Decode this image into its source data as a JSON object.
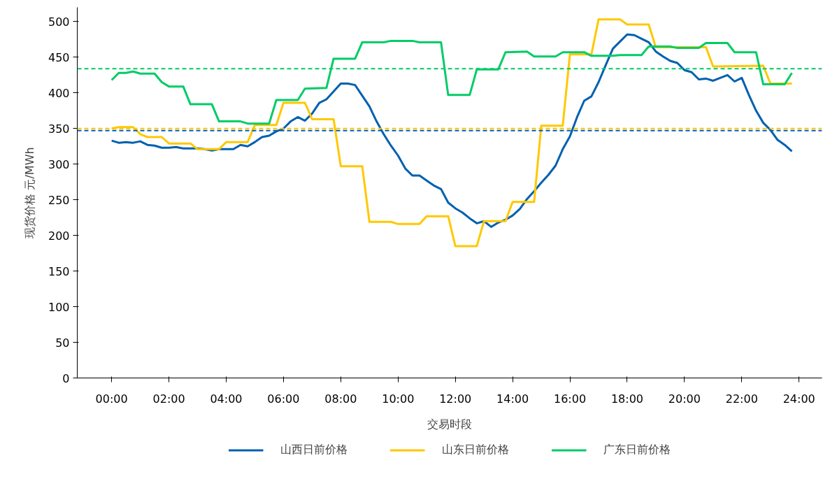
{
  "chart_data": {
    "type": "line",
    "xlabel": "交易时段",
    "ylabel": "现货价格 元/MWh",
    "xlim": [
      -1.2,
      24.8
    ],
    "ylim": [
      0,
      520
    ],
    "xticks": [
      {
        "value": 0,
        "label": "00:00"
      },
      {
        "value": 2,
        "label": "02:00"
      },
      {
        "value": 4,
        "label": "04:00"
      },
      {
        "value": 6,
        "label": "06:00"
      },
      {
        "value": 8,
        "label": "08:00"
      },
      {
        "value": 10,
        "label": "10:00"
      },
      {
        "value": 12,
        "label": "12:00"
      },
      {
        "value": 14,
        "label": "14:00"
      },
      {
        "value": 16,
        "label": "16:00"
      },
      {
        "value": 18,
        "label": "18:00"
      },
      {
        "value": 20,
        "label": "20:00"
      },
      {
        "value": 22,
        "label": "22:00"
      },
      {
        "value": 24,
        "label": "24:00"
      }
    ],
    "yticks": [
      0,
      50,
      100,
      150,
      200,
      250,
      300,
      350,
      400,
      450,
      500
    ],
    "grid": false,
    "legend": "bottom",
    "marker": "none",
    "line_style": "solid",
    "series": [
      {
        "name": "山西日前价格",
        "color": "#0060b0",
        "x": [
          0,
          0.25,
          0.5,
          0.75,
          1,
          1.25,
          1.5,
          1.75,
          2,
          2.25,
          2.5,
          2.75,
          3,
          3.25,
          3.5,
          3.75,
          4,
          4.25,
          4.5,
          4.75,
          5,
          5.25,
          5.5,
          5.75,
          6,
          6.25,
          6.5,
          6.75,
          7,
          7.25,
          7.5,
          7.75,
          8,
          8.25,
          8.5,
          8.75,
          9,
          9.25,
          9.5,
          9.75,
          10,
          10.25,
          10.5,
          10.75,
          11,
          11.25,
          11.5,
          11.75,
          12,
          12.25,
          12.5,
          12.75,
          13,
          13.25,
          13.5,
          13.75,
          14,
          14.25,
          14.5,
          14.75,
          15,
          15.25,
          15.5,
          15.75,
          16,
          16.25,
          16.5,
          16.75,
          17,
          17.25,
          17.5,
          17.75,
          18,
          18.25,
          18.5,
          18.75,
          19,
          19.25,
          19.5,
          19.75,
          20,
          20.25,
          20.5,
          20.75,
          21,
          21.25,
          21.5,
          21.75,
          22,
          22.25,
          22.5,
          22.75,
          23,
          23.25,
          23.5,
          23.75
        ],
        "values": [
          333,
          330,
          331,
          330,
          332,
          327,
          326,
          323,
          323,
          324,
          322,
          322,
          322,
          321,
          319,
          321,
          321,
          321,
          327,
          325,
          331,
          338,
          340,
          346,
          350,
          360,
          366,
          361,
          371,
          386,
          391,
          402,
          413,
          413,
          411,
          396,
          381,
          360,
          342,
          326,
          312,
          294,
          284,
          284,
          277,
          270,
          265,
          246,
          238,
          232,
          224,
          217,
          220,
          212,
          218,
          222,
          228,
          237,
          251,
          262,
          274,
          285,
          298,
          321,
          339,
          366,
          389,
          395,
          415,
          439,
          462,
          472,
          482,
          481,
          476,
          471,
          458,
          451,
          445,
          442,
          432,
          429,
          419,
          420,
          417,
          421,
          425,
          416,
          421,
          397,
          375,
          358,
          348,
          334,
          327,
          318
        ]
      },
      {
        "name": "山东日前价格",
        "color": "#ffc800",
        "x": [
          0,
          0.25,
          0.75,
          1,
          1.25,
          1.75,
          2,
          2.75,
          3,
          3.75,
          4,
          4.75,
          5,
          5.75,
          6,
          6.75,
          7,
          7.75,
          8,
          8.75,
          9,
          9.75,
          10,
          10.75,
          11,
          11.75,
          12,
          12.75,
          13,
          13.75,
          14,
          14.75,
          15,
          15.75,
          16,
          16.75,
          17,
          17.75,
          18,
          18.75,
          19,
          20.75,
          21,
          22.75,
          23,
          23.75
        ],
        "values": [
          350,
          352,
          352,
          342,
          338,
          338,
          329,
          329,
          321,
          321,
          331,
          331,
          355,
          355,
          386,
          386,
          363,
          363,
          297,
          297,
          219,
          219,
          216,
          216,
          227,
          227,
          185,
          185,
          220,
          220,
          247,
          247,
          354,
          354,
          454,
          454,
          503,
          503,
          496,
          496,
          464,
          464,
          437,
          438,
          413,
          413
        ]
      },
      {
        "name": "广东日前价格",
        "color": "#00cc66",
        "x": [
          0,
          0.25,
          0.5,
          0.75,
          1,
          1.5,
          1.75,
          2,
          2.5,
          2.75,
          3.5,
          3.75,
          4.5,
          4.75,
          5.5,
          5.75,
          6.5,
          6.75,
          7.5,
          7.75,
          8.5,
          8.75,
          9.5,
          9.75,
          10.5,
          10.75,
          11.5,
          11.75,
          12.5,
          12.75,
          13.5,
          13.75,
          14.5,
          14.75,
          15.5,
          15.75,
          16.5,
          16.75,
          17.5,
          17.75,
          18.5,
          18.75,
          19.5,
          19.75,
          20.5,
          20.75,
          21.5,
          21.75,
          22.5,
          22.75,
          23.5,
          23.75
        ],
        "values": [
          418,
          428,
          428,
          430,
          427,
          427,
          415,
          409,
          409,
          384,
          384,
          360,
          360,
          357,
          357,
          390,
          390,
          406,
          407,
          448,
          448,
          471,
          471,
          473,
          473,
          471,
          471,
          397,
          397,
          433,
          433,
          457,
          458,
          451,
          451,
          457,
          457,
          452,
          452,
          453,
          453,
          465,
          465,
          463,
          463,
          470,
          470,
          457,
          457,
          412,
          412,
          428
        ]
      }
    ],
    "ref_lines": [
      {
        "axis": "y",
        "value": 434,
        "color": "#00cc66",
        "line_style": "dashed"
      },
      {
        "axis": "y",
        "value": 350,
        "color": "#ffc800",
        "line_style": "dashed"
      },
      {
        "axis": "y",
        "value": 347,
        "color": "#0060b0",
        "line_style": "dashed"
      }
    ]
  }
}
